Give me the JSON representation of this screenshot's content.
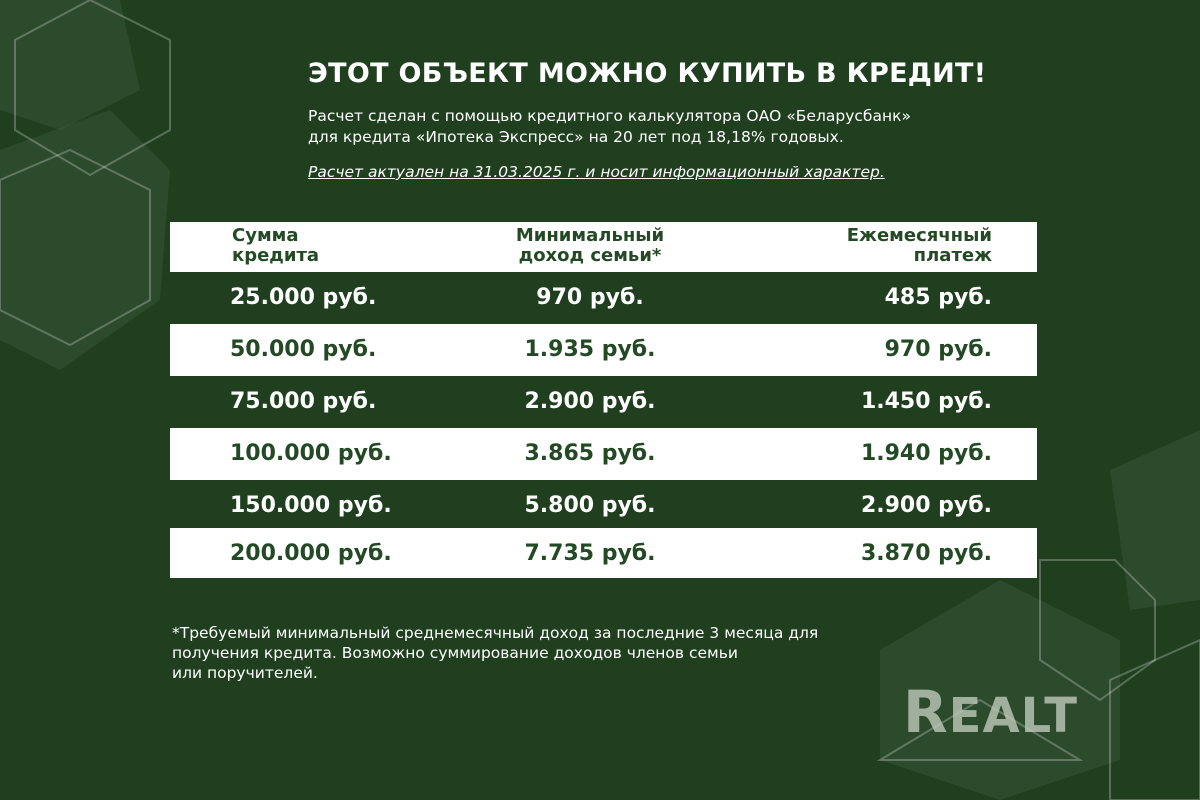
{
  "title": "ЭТОТ ОБЪЕКТ МОЖНО КУПИТЬ В КРЕДИТ!",
  "subtitle_line1": "Расчет сделан с помощью кредитного калькулятора ОАО «Беларусбанк»",
  "subtitle_line2": "для кредита «Ипотека Экспресс» на 20 лет под 18,18% годовых.",
  "note": "Расчет актуален на 31.03.2025 г. и носит информационный характер.",
  "table": {
    "headers": [
      "Сумма кредита",
      "Минимальный доход семьи*",
      "Ежемесячный платеж"
    ],
    "header_lines": [
      [
        "Сумма",
        "кредита"
      ],
      [
        "Минимальный",
        "доход семьи*"
      ],
      [
        "Ежемесячный",
        "платеж"
      ]
    ],
    "rows": [
      [
        "25.000 руб.",
        "970 руб.",
        "485 руб."
      ],
      [
        "50.000 руб.",
        "1.935 руб.",
        "970 руб."
      ],
      [
        "75.000 руб.",
        "2.900 руб.",
        "1.450 руб."
      ],
      [
        "100.000 руб.",
        "3.865 руб.",
        "1.940 руб."
      ],
      [
        "150.000 руб.",
        "5.800 руб.",
        "2.900 руб."
      ],
      [
        "200.000 руб.",
        "7.735 руб.",
        "3.870 руб."
      ]
    ]
  },
  "footnote_lines": [
    "*Требуемый минимальный среднемесячный доход за последние 3 месяца для",
    "получения кредита. Возможно суммирование доходов членов семьи",
    "или поручителей."
  ],
  "logo": "REALT",
  "colors": {
    "background": "#1f3f1f",
    "accent_text": "#234a24",
    "light": "#ffffff"
  }
}
